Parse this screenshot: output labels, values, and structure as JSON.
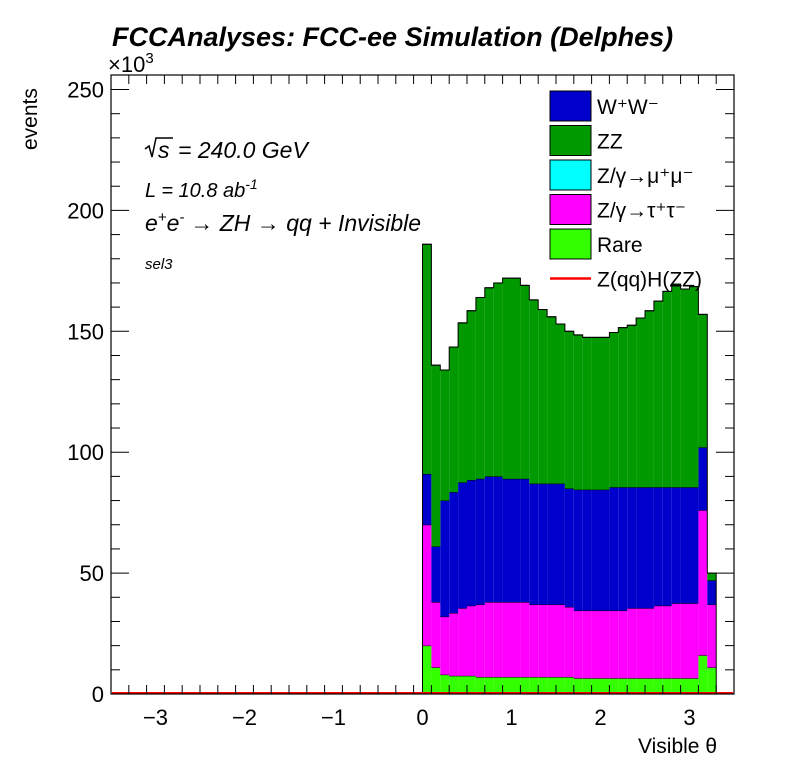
{
  "chart_data": {
    "type": "bar",
    "style": "stacked-histogram",
    "title": "FCCAnalyses: FCC-ee Simulation (Delphes)",
    "xlabel": "Visible θ",
    "ylabel": "events",
    "y_multiplier": "×10^3",
    "xlim": [
      -3.5,
      3.5
    ],
    "ylim": [
      0,
      256
    ],
    "x_ticks": [
      "−3",
      "−2",
      "−1",
      "0",
      "1",
      "2",
      "3"
    ],
    "y_ticks": [
      "0",
      "50",
      "100",
      "150",
      "200",
      "250"
    ],
    "annotations": {
      "sqrt_s": "= 240.0 GeV",
      "lumi_prefix": "L = 10.8 ab",
      "lumi_exp": "-1",
      "process": "→ ZH → qq + Invisible",
      "selection": "sel3"
    },
    "bins": {
      "start": 0.0,
      "width": 0.1,
      "count": 33
    },
    "legend_position": "top-right",
    "series": [
      {
        "name": "Rare",
        "color": "#33ff00",
        "values": [
          20,
          11,
          8,
          7.5,
          7.5,
          7.5,
          7,
          7,
          7,
          7,
          7,
          7,
          7,
          7,
          7,
          7,
          7,
          6.5,
          6.5,
          6.5,
          6.5,
          6.5,
          6.5,
          6.5,
          6.5,
          6.5,
          6.5,
          6.5,
          6.5,
          6.5,
          6.5,
          16,
          11
        ]
      },
      {
        "name": "Z/γ→τ⁺τ⁻",
        "color": "#ff00ff",
        "values": [
          50,
          27,
          24,
          26,
          28,
          29,
          30,
          31,
          31,
          31,
          31,
          31,
          30,
          30,
          30,
          30,
          29,
          28,
          28,
          28,
          28,
          28,
          28,
          29,
          29,
          29,
          30,
          30,
          31,
          31,
          31,
          60,
          26
        ]
      },
      {
        "name": "W⁺W⁻",
        "color": "#0000cc",
        "values": [
          21,
          23,
          48,
          50,
          52,
          52,
          52,
          52,
          52,
          51,
          51,
          51,
          50,
          50,
          50,
          50,
          49,
          50,
          50,
          50,
          50,
          51,
          51,
          50,
          50,
          50,
          49,
          49,
          48,
          48,
          48,
          26,
          10
        ]
      },
      {
        "name": "ZZ",
        "color": "#009900",
        "values": [
          95,
          75,
          54,
          60,
          66,
          70,
          75,
          78,
          80,
          83,
          83,
          80,
          76,
          72,
          69,
          66,
          65,
          64,
          63,
          63,
          63,
          64,
          66,
          67,
          70,
          73,
          77,
          81,
          84,
          82,
          83,
          55,
          3
        ]
      },
      {
        "name": "Z/γ→μ⁺μ⁻",
        "color": "#00ffff",
        "values": [
          0,
          0,
          0,
          0,
          0,
          0,
          0,
          0,
          0,
          0,
          0,
          0,
          0,
          0,
          0,
          0,
          0,
          0,
          0,
          0,
          0,
          0,
          0,
          0,
          0,
          0,
          0,
          0,
          0,
          0,
          0,
          0,
          0
        ]
      },
      {
        "name": "Z(qq)H(ZZ)",
        "color": "#ff0000",
        "style": "line",
        "values": [
          0,
          0,
          0,
          0,
          0,
          0,
          0,
          0,
          0,
          0,
          0,
          0,
          0,
          0,
          0,
          0,
          0,
          0,
          0,
          0,
          0,
          0,
          0,
          0,
          0,
          0,
          0,
          0,
          0,
          0,
          0,
          0,
          0
        ]
      }
    ],
    "legend": [
      {
        "label": "W⁺W⁻",
        "color": "#0000cc",
        "kind": "box"
      },
      {
        "label": "ZZ",
        "color": "#009900",
        "kind": "box"
      },
      {
        "label": "Z/γ→μ⁺μ⁻",
        "color": "#00ffff",
        "kind": "box"
      },
      {
        "label": "Z/γ→τ⁺τ⁻",
        "color": "#ff00ff",
        "kind": "box"
      },
      {
        "label": "Rare",
        "color": "#33ff00",
        "kind": "box"
      },
      {
        "label": "Z(qq)H(ZZ)",
        "color": "#ff0000",
        "kind": "line"
      }
    ]
  }
}
